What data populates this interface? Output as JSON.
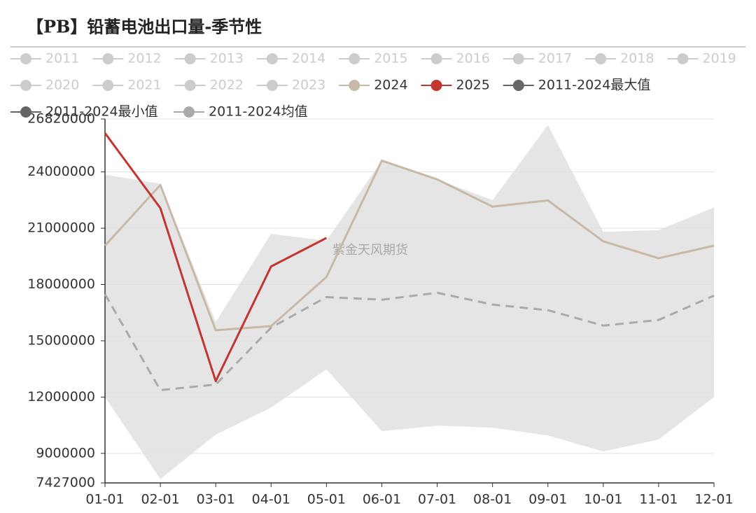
{
  "chart_data": {
    "type": "line",
    "title": "【PB】铅蓄电池出口量-季节性",
    "watermark": "紫金天风期货",
    "categories": [
      "01-01",
      "02-01",
      "03-01",
      "04-01",
      "05-01",
      "06-01",
      "07-01",
      "08-01",
      "09-01",
      "10-01",
      "11-01",
      "12-01"
    ],
    "inactive_legend": [
      "2011",
      "2012",
      "2013",
      "2014",
      "2015",
      "2016",
      "2017",
      "2018",
      "2019",
      "2020",
      "2021",
      "2022",
      "2023"
    ],
    "series": [
      {
        "name": "2024",
        "color": "#c8b9a6",
        "values": [
          20070000,
          23300000,
          15560000,
          15780000,
          18400000,
          24600000,
          23600000,
          22150000,
          22480000,
          20300000,
          19400000,
          20070000
        ]
      },
      {
        "name": "2025",
        "color": "#c23531",
        "values": [
          26070000,
          22070000,
          12850000,
          18960000,
          20480000,
          null,
          null,
          null,
          null,
          null,
          null,
          null
        ]
      },
      {
        "name": "2011-2024最大值",
        "color": "#666666",
        "style": "band-top",
        "values": [
          23850000,
          23370000,
          16000000,
          20700000,
          20330000,
          24600000,
          23600000,
          22500000,
          26500000,
          20800000,
          20900000,
          22100000
        ]
      },
      {
        "name": "2011-2024最小值",
        "color": "#666666",
        "style": "band-bottom",
        "values": [
          12000000,
          7630000,
          10000000,
          11440000,
          13480000,
          10180000,
          10480000,
          10370000,
          9960000,
          9100000,
          9740000,
          12000000
        ]
      },
      {
        "name": "2011-2024均值",
        "color": "#aaaaaa",
        "style": "dashed",
        "values": [
          17480000,
          12370000,
          12670000,
          15700000,
          17330000,
          17190000,
          17560000,
          16930000,
          16630000,
          15810000,
          16110000,
          17410000
        ]
      }
    ],
    "ylim": [
      7427000,
      26820000
    ],
    "yticks": [
      7427000,
      9000000,
      12000000,
      15000000,
      18000000,
      21000000,
      24000000,
      26820000
    ],
    "grid": true
  }
}
